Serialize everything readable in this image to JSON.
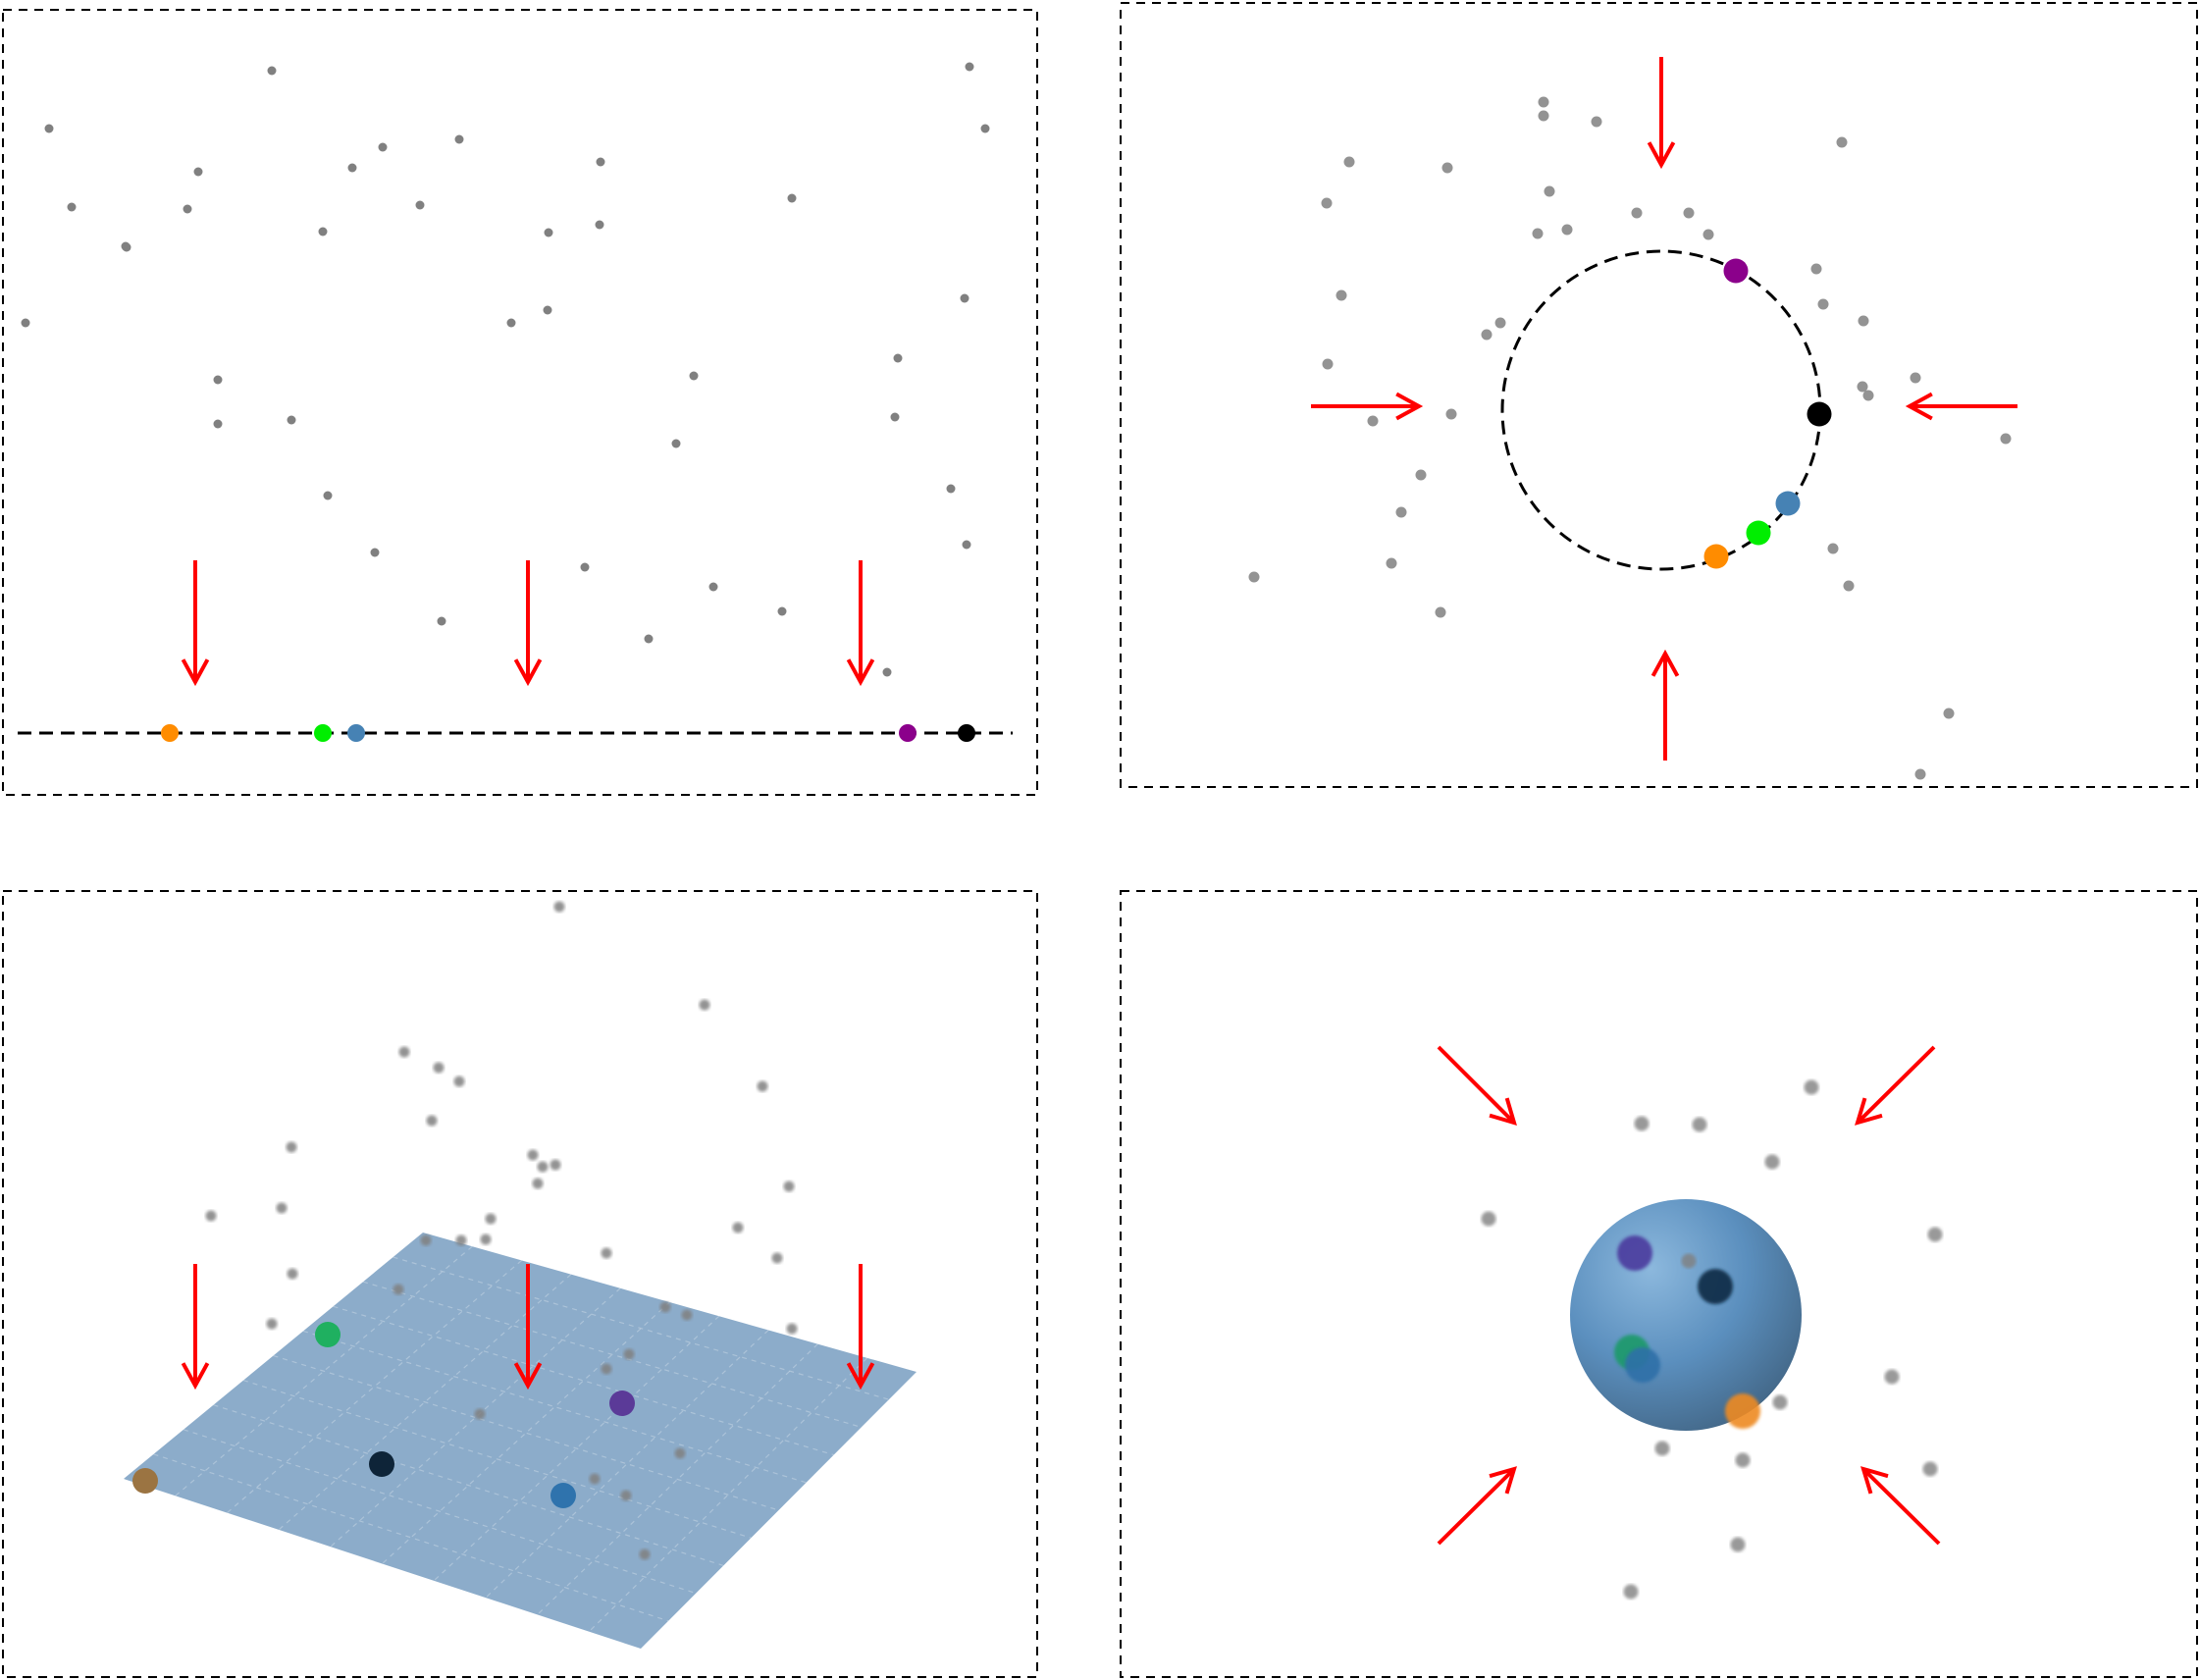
{
  "figure": {
    "colors": {
      "frame": "#000000",
      "arrow": "#ff0000",
      "sample_point": "#808080",
      "plane_fill": "#7fa3c4",
      "sphere_fill": "#5b8fbe",
      "orange": "#ff8c00",
      "green": "#00ee00",
      "blue": "#4682b4",
      "purple": "#8b008b",
      "black": "#000000"
    },
    "panels": [
      {
        "id": "line",
        "description_icon": "dashed-line-manifold",
        "arrow_icon": "red-down-arrow"
      },
      {
        "id": "circle",
        "description_icon": "dashed-circle-manifold",
        "arrow_icon": "red-inward-arrow"
      },
      {
        "id": "plane",
        "description_icon": "blue-plane-manifold",
        "arrow_icon": "red-down-arrow"
      },
      {
        "id": "sphere",
        "description_icon": "blue-sphere-manifold",
        "arrow_icon": "red-diagonal-arrow"
      }
    ]
  }
}
